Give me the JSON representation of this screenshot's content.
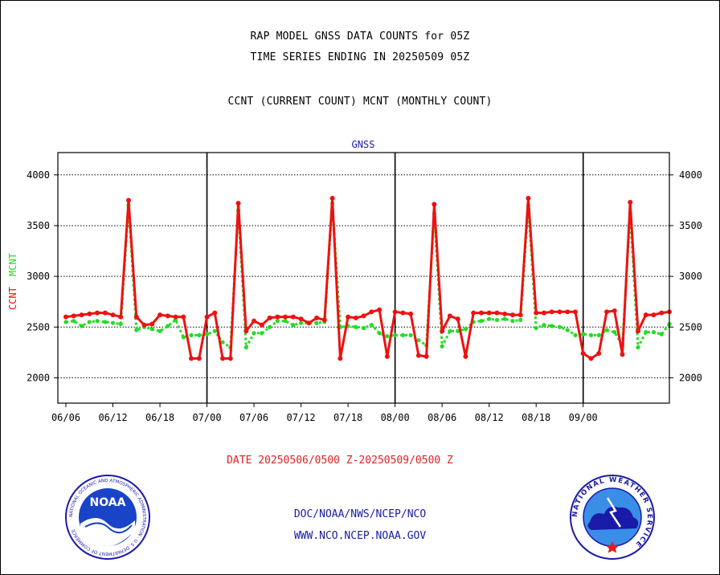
{
  "header": {
    "title_line1": "RAP MODEL GNSS DATA COUNTS for 05Z",
    "title_line2": "TIME SERIES ENDING IN 20250509 05Z",
    "subtitle": "CCNT (CURRENT COUNT) MCNT (MONTHLY COUNT)"
  },
  "footer": {
    "date_range": "DATE 20250506/0500 Z-20250509/0500 Z",
    "org_path": "DOC/NOAA/NWS/NCEP/NCO",
    "website": "WWW.NCO.NCEP.NOAA.GOV"
  },
  "logos": {
    "noaa_text": "NOAA",
    "noaa_ring": "NATIONAL OCEANIC AND ATMOSPHERIC ADMINISTRATION · U.S. DEPARTMENT OF COMMERCE",
    "nws_ring": "NATIONAL WEATHER SERVICE"
  },
  "chart_data": {
    "type": "line",
    "title": "GNSS",
    "ylabel_ccnt": "CCNT",
    "ylabel_mcnt": "MCNT",
    "ylim": [
      1750,
      4220
    ],
    "yticks": [
      2000,
      2500,
      3000,
      3500,
      4000
    ],
    "xticks": [
      "06/06",
      "06/12",
      "06/18",
      "07/00",
      "07/06",
      "07/12",
      "07/18",
      "08/00",
      "08/06",
      "08/12",
      "08/18",
      "09/00"
    ],
    "day_boundaries": [
      "07/00",
      "08/00",
      "09/00"
    ],
    "grid": true,
    "x_hours_ordinal": true,
    "series": [
      {
        "name": "CCNT",
        "color": "#ee1111",
        "values": [
          2600,
          2610,
          2620,
          2630,
          2640,
          2640,
          2620,
          2600,
          3750,
          2600,
          2520,
          2530,
          2620,
          2610,
          2600,
          2600,
          2190,
          2190,
          2600,
          2640,
          2190,
          2190,
          3720,
          2460,
          2560,
          2520,
          2590,
          2600,
          2600,
          2600,
          2580,
          2540,
          2590,
          2570,
          3770,
          2190,
          2600,
          2590,
          2610,
          2650,
          2670,
          2210,
          2650,
          2640,
          2630,
          2220,
          2210,
          3710,
          2460,
          2610,
          2580,
          2210,
          2640,
          2640,
          2640,
          2640,
          2630,
          2620,
          2620,
          3770,
          2640,
          2640,
          2650,
          2650,
          2650,
          2650,
          2240,
          2190,
          2240,
          2650,
          2660,
          2230,
          3730,
          2460,
          2620,
          2620,
          2640,
          2650
        ]
      },
      {
        "name": "MCNT",
        "color": "#22dd22",
        "values": [
          2550,
          2560,
          2510,
          2550,
          2560,
          2550,
          2540,
          2530,
          3700,
          2470,
          2500,
          2480,
          2460,
          2510,
          2570,
          2400,
          2420,
          2420,
          2430,
          2460,
          2350,
          2300,
          3650,
          2300,
          2440,
          2440,
          2500,
          2560,
          2560,
          2520,
          2540,
          2540,
          2540,
          2550,
          3720,
          2500,
          2510,
          2500,
          2490,
          2520,
          2440,
          2410,
          2420,
          2420,
          2420,
          2370,
          2320,
          3620,
          2310,
          2460,
          2460,
          2480,
          2550,
          2560,
          2580,
          2570,
          2580,
          2560,
          2570,
          3700,
          2490,
          2520,
          2510,
          2500,
          2470,
          2420,
          2430,
          2420,
          2420,
          2470,
          2450,
          2320,
          3620,
          2300,
          2450,
          2450,
          2430,
          2530
        ]
      }
    ]
  }
}
